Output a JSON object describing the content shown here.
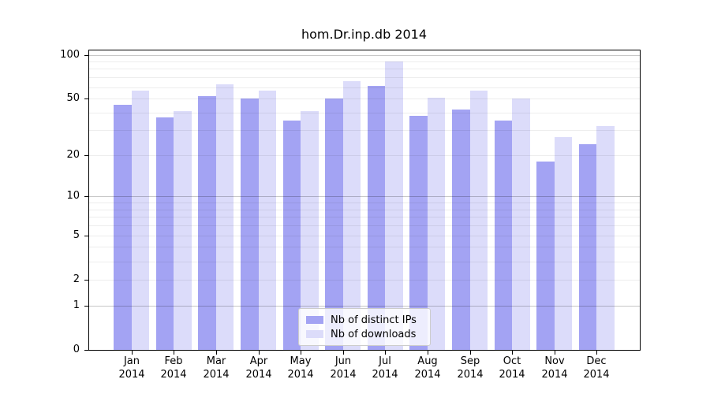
{
  "chart_data": {
    "type": "bar",
    "title": "hom.Dr.inp.db 2014",
    "categories": [
      "Jan",
      "Feb",
      "Mar",
      "Apr",
      "May",
      "Jun",
      "Jul",
      "Aug",
      "Sep",
      "Oct",
      "Nov",
      "Dec"
    ],
    "x_year_label": "2014",
    "series": [
      {
        "name": "Nb of distinct IPs",
        "color": "#a3a3f3",
        "values": [
          45,
          37,
          52,
          50,
          35,
          50,
          61,
          38,
          42,
          35,
          18,
          24
        ]
      },
      {
        "name": "Nb of downloads",
        "color": "#dcdcfa",
        "values": [
          57,
          41,
          63,
          57,
          41,
          66,
          90,
          51,
          57,
          50,
          27,
          32
        ]
      }
    ],
    "y_axis": {
      "scale": "log(1+v)",
      "tick_labels": [
        "0",
        "1",
        "2",
        "5",
        "10",
        "20",
        "50",
        "100"
      ],
      "tick_values": [
        0,
        1,
        2,
        5,
        10,
        20,
        50,
        100
      ],
      "top_value": 107
    },
    "grid": {
      "minor_lines": [
        2,
        3,
        4,
        5,
        6,
        7,
        8,
        9,
        20,
        30,
        40,
        50,
        60,
        70,
        80,
        90
      ],
      "major_lines": [
        1,
        10,
        100
      ]
    },
    "legend": {
      "position": "lower center inside"
    },
    "xlabel": "",
    "ylabel": ""
  }
}
